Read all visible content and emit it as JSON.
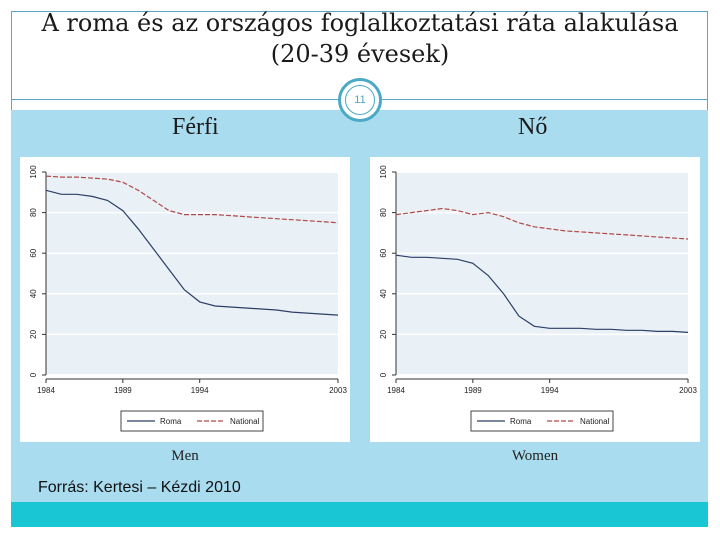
{
  "title": "A roma és az országos foglalkoztatási ráta alakulása (20-39 évesek)",
  "slide_number": "11",
  "left_heading": "Férfi",
  "right_heading": "Nő",
  "source": "Forrás: Kertesi – Kézdi 2010",
  "colors": {
    "panel": "#a9dcef",
    "footer": "#19c6d3",
    "roma": "#2c3e66",
    "national": "#b04a4a",
    "plot_bg": "#eaf1f6"
  },
  "chart_data": [
    {
      "type": "line",
      "caption": "Men",
      "ylim": [
        0,
        100
      ],
      "yticks": [
        "0",
        "20",
        "40",
        "60",
        "80",
        "100"
      ],
      "xlim": [
        1984,
        2003
      ],
      "xticks": [
        "1984",
        "1989",
        "1994",
        "2003"
      ],
      "grid": true,
      "legend": [
        "Roma",
        "National"
      ],
      "series": [
        {
          "name": "Roma",
          "x": [
            1984,
            1985,
            1986,
            1987,
            1988,
            1989,
            1990,
            1991,
            1992,
            1993,
            1994,
            1995,
            1996,
            1997,
            1998,
            1999,
            2000,
            2001,
            2002,
            2003
          ],
          "values": [
            91,
            89,
            89,
            88,
            86,
            81,
            72,
            62,
            52,
            42,
            36,
            34,
            33.5,
            33,
            32.5,
            32,
            31,
            30.5,
            30,
            29.5
          ]
        },
        {
          "name": "National",
          "x": [
            1984,
            1985,
            1986,
            1987,
            1988,
            1989,
            1990,
            1991,
            1992,
            1993,
            1994,
            1995,
            1996,
            1997,
            1998,
            1999,
            2000,
            2001,
            2002,
            2003
          ],
          "values": [
            98,
            97.5,
            97.5,
            97,
            96.5,
            95,
            91,
            86,
            81,
            79,
            79,
            79,
            78.5,
            78,
            77.5,
            77,
            76.5,
            76,
            75.5,
            75
          ]
        }
      ]
    },
    {
      "type": "line",
      "caption": "Women",
      "ylim": [
        0,
        100
      ],
      "yticks": [
        "0",
        "20",
        "40",
        "60",
        "80",
        "100"
      ],
      "xlim": [
        1984,
        2003
      ],
      "xticks": [
        "1984",
        "1989",
        "1994",
        "2003"
      ],
      "grid": true,
      "legend": [
        "Roma",
        "National"
      ],
      "series": [
        {
          "name": "Roma",
          "x": [
            1984,
            1985,
            1986,
            1987,
            1988,
            1989,
            1990,
            1991,
            1992,
            1993,
            1994,
            1995,
            1996,
            1997,
            1998,
            1999,
            2000,
            2001,
            2002,
            2003
          ],
          "values": [
            59,
            58,
            58,
            57.5,
            57,
            55,
            49,
            40,
            29,
            24,
            23,
            23,
            23,
            22.5,
            22.5,
            22,
            22,
            21.5,
            21.5,
            21
          ]
        },
        {
          "name": "National",
          "x": [
            1984,
            1985,
            1986,
            1987,
            1988,
            1989,
            1990,
            1991,
            1992,
            1993,
            1994,
            1995,
            1996,
            1997,
            1998,
            1999,
            2000,
            2001,
            2002,
            2003
          ],
          "values": [
            79,
            80,
            81,
            82,
            81,
            79,
            80,
            78,
            75,
            73,
            72,
            71,
            70.5,
            70,
            69.5,
            69,
            68.5,
            68,
            67.5,
            67
          ]
        }
      ]
    }
  ]
}
